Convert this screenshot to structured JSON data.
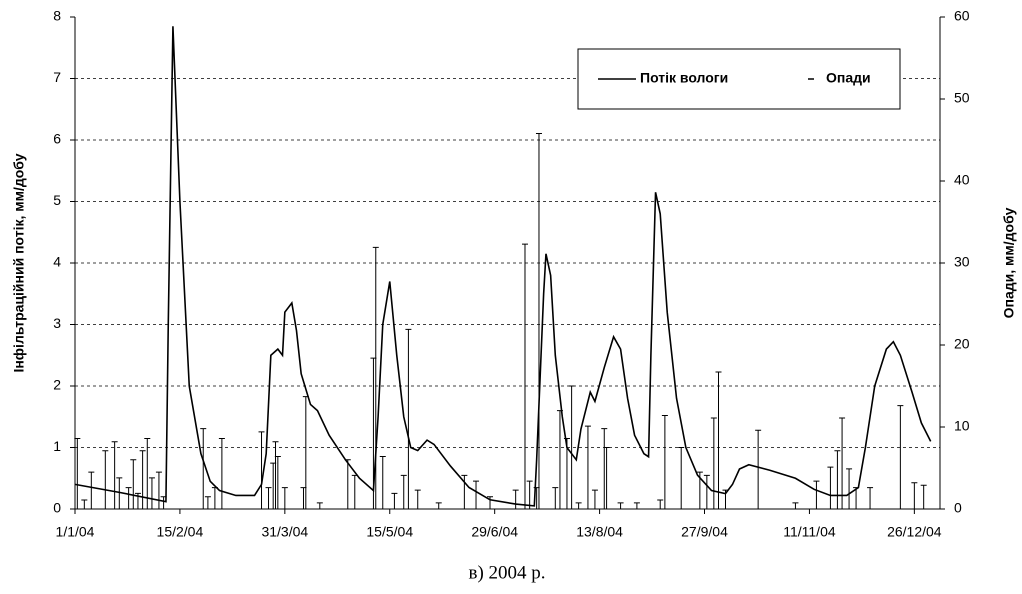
{
  "chart_data": {
    "type": "combo",
    "caption": "в) 2004 р.",
    "y_label": "Інфільтраційний потік, мм/добу",
    "y2_label": "Опади, мм/добу",
    "legend": "upper right",
    "grid": true,
    "xlim": [
      "2004-01-01",
      "2005-01-06"
    ],
    "xticks": [
      {
        "value": "2004-01-01",
        "label": "1/1/04"
      },
      {
        "value": "2004-02-15",
        "label": "15/2/04"
      },
      {
        "value": "2004-03-31",
        "label": "31/3/04"
      },
      {
        "value": "2004-05-15",
        "label": "15/5/04"
      },
      {
        "value": "2004-06-29",
        "label": "29/6/04"
      },
      {
        "value": "2004-08-13",
        "label": "13/8/04"
      },
      {
        "value": "2004-09-27",
        "label": "27/9/04"
      },
      {
        "value": "2004-11-11",
        "label": "11/11/04"
      },
      {
        "value": "2004-12-26",
        "label": "26/12/04"
      }
    ],
    "ylim": [
      0,
      8
    ],
    "yticks": [
      0,
      1,
      2,
      3,
      4,
      5,
      6,
      7,
      8
    ],
    "y2lim": [
      0,
      60
    ],
    "y2ticks": [
      0,
      10,
      20,
      30,
      40,
      50,
      60
    ],
    "series": [
      {
        "name": "Потік вологи",
        "type": "line",
        "color": "#000000",
        "x": [
          "2004-01-01",
          "2004-01-20",
          "2004-02-09",
          "2004-02-10",
          "2004-02-12",
          "2004-02-15",
          "2004-02-19",
          "2004-02-24",
          "2004-02-28",
          "2004-03-03",
          "2004-03-10",
          "2004-03-18",
          "2004-03-21",
          "2004-03-23",
          "2004-03-25",
          "2004-03-28",
          "2004-03-30",
          "2004-03-31",
          "2004-04-03",
          "2004-04-05",
          "2004-04-07",
          "2004-04-11",
          "2004-04-14",
          "2004-04-19",
          "2004-04-26",
          "2004-05-02",
          "2004-05-08",
          "2004-05-10",
          "2004-05-12",
          "2004-05-15",
          "2004-05-16",
          "2004-05-18",
          "2004-05-21",
          "2004-05-24",
          "2004-05-27",
          "2004-05-31",
          "2004-06-03",
          "2004-06-10",
          "2004-06-18",
          "2004-06-27",
          "2004-07-08",
          "2004-07-16",
          "2004-07-17",
          "2004-07-20",
          "2004-07-21",
          "2004-07-23",
          "2004-07-25",
          "2004-07-28",
          "2004-07-30",
          "2004-08-03",
          "2004-08-05",
          "2004-08-09",
          "2004-08-11",
          "2004-08-15",
          "2004-08-19",
          "2004-08-22",
          "2004-08-25",
          "2004-08-28",
          "2004-09-01",
          "2004-09-03",
          "2004-09-04",
          "2004-09-06",
          "2004-09-08",
          "2004-09-11",
          "2004-09-15",
          "2004-09-19",
          "2004-09-24",
          "2004-09-30",
          "2004-10-06",
          "2004-10-09",
          "2004-10-12",
          "2004-10-16",
          "2004-10-25",
          "2004-11-05",
          "2004-11-13",
          "2004-11-20",
          "2004-11-27",
          "2004-12-02",
          "2004-12-05",
          "2004-12-09",
          "2004-12-14",
          "2004-12-17",
          "2004-12-20",
          "2004-12-25",
          "2004-12-29",
          "2005-01-02"
        ],
        "values": [
          0.4,
          0.27,
          0.12,
          3.0,
          7.85,
          5,
          2,
          0.9,
          0.45,
          0.3,
          0.22,
          0.22,
          0.4,
          0.9,
          2.5,
          2.6,
          2.5,
          3.2,
          3.35,
          2.9,
          2.2,
          1.7,
          1.6,
          1.2,
          0.8,
          0.5,
          0.3,
          1.5,
          3.0,
          3.7,
          3.3,
          2.5,
          1.5,
          1.0,
          0.95,
          1.12,
          1.05,
          0.7,
          0.35,
          0.15,
          0.08,
          0.05,
          0.8,
          3.5,
          4.15,
          3.8,
          2.5,
          1.5,
          1.0,
          0.8,
          1.3,
          1.9,
          1.75,
          2.3,
          2.8,
          2.6,
          1.8,
          1.2,
          0.9,
          0.85,
          2.5,
          5.15,
          4.8,
          3.2,
          1.8,
          1.0,
          0.55,
          0.3,
          0.25,
          0.4,
          0.65,
          0.72,
          0.63,
          0.5,
          0.32,
          0.22,
          0.22,
          0.35,
          1.0,
          2.0,
          2.6,
          2.72,
          2.5,
          1.9,
          1.4,
          1.1
        ]
      },
      {
        "name": "Опади",
        "type": "bar",
        "axis": "y2",
        "color": "#000000",
        "x": [
          "2004-01-02",
          "2004-01-05",
          "2004-01-08",
          "2004-01-14",
          "2004-01-18",
          "2004-01-20",
          "2004-01-24",
          "2004-01-26",
          "2004-01-28",
          "2004-01-30",
          "2004-02-01",
          "2004-02-03",
          "2004-02-06",
          "2004-02-08",
          "2004-02-25",
          "2004-02-27",
          "2004-03-01",
          "2004-03-04",
          "2004-03-21",
          "2004-03-24",
          "2004-03-26",
          "2004-03-27",
          "2004-03-28",
          "2004-03-31",
          "2004-04-08",
          "2004-04-09",
          "2004-04-15",
          "2004-04-27",
          "2004-04-30",
          "2004-05-08",
          "2004-05-09",
          "2004-05-12",
          "2004-05-17",
          "2004-05-21",
          "2004-05-23",
          "2004-05-27",
          "2004-06-05",
          "2004-06-16",
          "2004-06-21",
          "2004-06-27",
          "2004-07-08",
          "2004-07-12",
          "2004-07-14",
          "2004-07-17",
          "2004-07-18",
          "2004-07-25",
          "2004-07-27",
          "2004-07-30",
          "2004-08-01",
          "2004-08-04",
          "2004-08-08",
          "2004-08-11",
          "2004-08-15",
          "2004-08-16",
          "2004-08-22",
          "2004-08-29",
          "2004-09-08",
          "2004-09-10",
          "2004-09-17",
          "2004-09-25",
          "2004-09-28",
          "2004-10-01",
          "2004-10-03",
          "2004-10-06",
          "2004-10-20",
          "2004-11-05",
          "2004-11-14",
          "2004-11-20",
          "2004-11-23",
          "2004-11-25",
          "2004-11-28",
          "2004-12-01",
          "2004-12-07",
          "2004-12-20",
          "2004-12-26",
          "2004-12-30"
        ],
        "values": [
          8.6,
          1.1,
          4.5,
          7.1,
          8.2,
          3.8,
          2.6,
          6,
          1.9,
          7.1,
          8.6,
          3.8,
          4.5,
          1.5,
          9.8,
          1.5,
          2.6,
          8.6,
          9.4,
          2.6,
          5.6,
          8.2,
          6.4,
          2.6,
          2.6,
          13.7,
          0.75,
          6,
          4.1,
          18.4,
          31.9,
          6.4,
          1.9,
          4.1,
          21.9,
          2.3,
          0.75,
          4.1,
          3.4,
          1.5,
          2.3,
          32.3,
          3.4,
          2.6,
          45.8,
          2.6,
          12,
          8.6,
          15,
          0.75,
          10.1,
          2.3,
          9.8,
          7.5,
          0.75,
          0.75,
          1.1,
          11.4,
          7.5,
          4.5,
          4.1,
          11.1,
          16.7,
          2.3,
          9.6,
          0.75,
          3.4,
          5.1,
          7.1,
          11.1,
          4.9,
          2.6,
          2.6,
          12.6,
          3.2,
          2.9
        ]
      }
    ]
  }
}
